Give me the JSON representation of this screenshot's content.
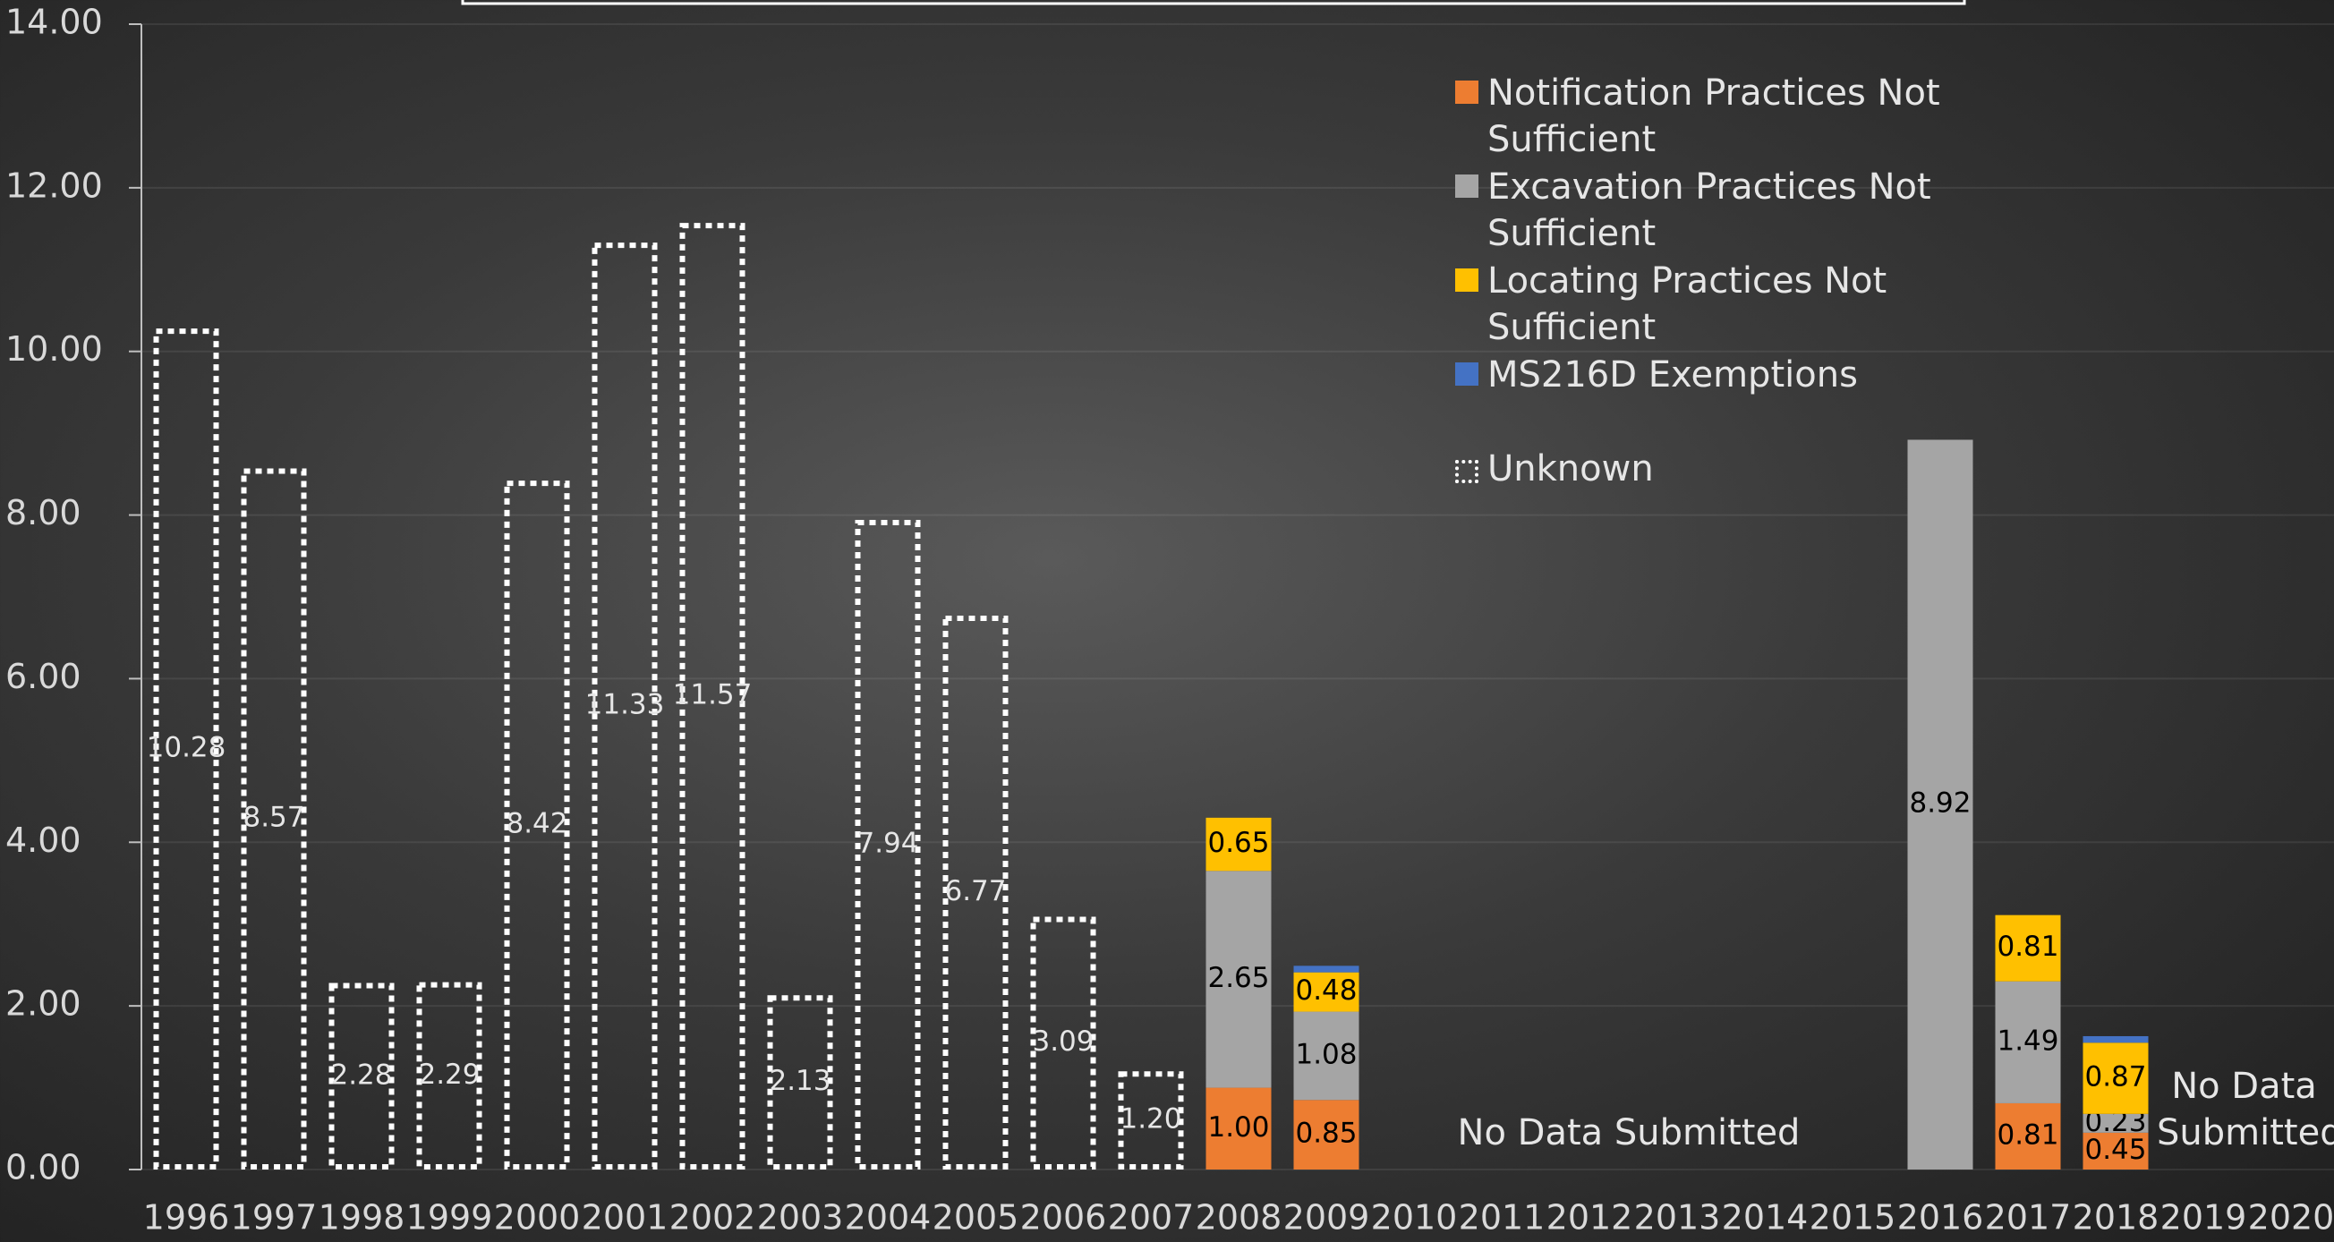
{
  "chart_data": {
    "type": "bar",
    "stacked": true,
    "categories": [
      "1996",
      "1997",
      "1998",
      "1999",
      "2000",
      "2001",
      "2002",
      "2003",
      "2004",
      "2005",
      "2006",
      "2007",
      "2008",
      "2009",
      "2010",
      "2011",
      "2012",
      "2013",
      "2014",
      "2015",
      "2016",
      "2017",
      "2018",
      "2019",
      "2020"
    ],
    "series": [
      {
        "name": "Notification Practices Not Sufficient",
        "color": "#ed7d31",
        "values": [
          null,
          null,
          null,
          null,
          null,
          null,
          null,
          null,
          null,
          null,
          null,
          null,
          1.0,
          0.85,
          null,
          null,
          null,
          null,
          null,
          null,
          null,
          0.81,
          0.45,
          null,
          null
        ],
        "value_labels": [
          null,
          null,
          null,
          null,
          null,
          null,
          null,
          null,
          null,
          null,
          null,
          null,
          "1.00",
          "0.85",
          null,
          null,
          null,
          null,
          null,
          null,
          null,
          "0.81",
          "0.45",
          null,
          null
        ]
      },
      {
        "name": "Excavation Practices Not Sufficient",
        "color": "#a5a5a5",
        "values": [
          null,
          null,
          null,
          null,
          null,
          null,
          null,
          null,
          null,
          null,
          null,
          null,
          2.65,
          1.08,
          null,
          null,
          null,
          null,
          null,
          null,
          8.92,
          1.49,
          0.23,
          null,
          null
        ],
        "value_labels": [
          null,
          null,
          null,
          null,
          null,
          null,
          null,
          null,
          null,
          null,
          null,
          null,
          "2.65",
          "1.08",
          null,
          null,
          null,
          null,
          null,
          null,
          "8.92",
          "1.49",
          "0.23",
          null,
          null
        ]
      },
      {
        "name": "Locating Practices Not Sufficient",
        "color": "#ffc000",
        "values": [
          null,
          null,
          null,
          null,
          null,
          null,
          null,
          null,
          null,
          null,
          null,
          null,
          0.65,
          0.48,
          null,
          null,
          null,
          null,
          null,
          null,
          null,
          0.81,
          0.87,
          null,
          null
        ],
        "value_labels": [
          null,
          null,
          null,
          null,
          null,
          null,
          null,
          null,
          null,
          null,
          null,
          null,
          "0.65",
          "0.48",
          null,
          null,
          null,
          null,
          null,
          null,
          null,
          "0.81",
          "0.87",
          null,
          null
        ]
      },
      {
        "name": "MS216D Exemptions",
        "color": "#4472c4",
        "values": [
          null,
          null,
          null,
          null,
          null,
          null,
          null,
          null,
          null,
          null,
          null,
          null,
          null,
          0.08,
          null,
          null,
          null,
          null,
          null,
          null,
          null,
          null,
          0.08,
          null,
          null
        ]
      },
      {
        "name": "Unknown",
        "color": "#ffffff",
        "dashed": true,
        "values": [
          10.28,
          8.57,
          2.28,
          2.29,
          8.42,
          11.33,
          11.57,
          2.13,
          7.94,
          6.77,
          3.09,
          1.2,
          null,
          null,
          null,
          null,
          null,
          null,
          null,
          null,
          null,
          null,
          null,
          null,
          null
        ],
        "value_labels": [
          "10.28",
          "8.57",
          "2.28",
          "2.29",
          "8.42",
          "11.33",
          "11.57",
          "2.13",
          "7.94",
          "6.77",
          "3.09",
          "1.20",
          null,
          null,
          null,
          null,
          null,
          null,
          null,
          null,
          null,
          null,
          null,
          null,
          null
        ]
      }
    ],
    "annotations": [
      "No Data Submitted",
      "No Data Submitted"
    ],
    "ylim": [
      0,
      14
    ],
    "yticks": [
      {
        "value": 0,
        "label": "0.00"
      },
      {
        "value": 2,
        "label": "2.00"
      },
      {
        "value": 4,
        "label": "4.00"
      },
      {
        "value": 6,
        "label": "6.00"
      },
      {
        "value": 8,
        "label": "8.00"
      },
      {
        "value": 10,
        "label": "10.00"
      },
      {
        "value": 12,
        "label": "12.00"
      },
      {
        "value": 14,
        "label": "14.00"
      }
    ],
    "grid": true
  }
}
